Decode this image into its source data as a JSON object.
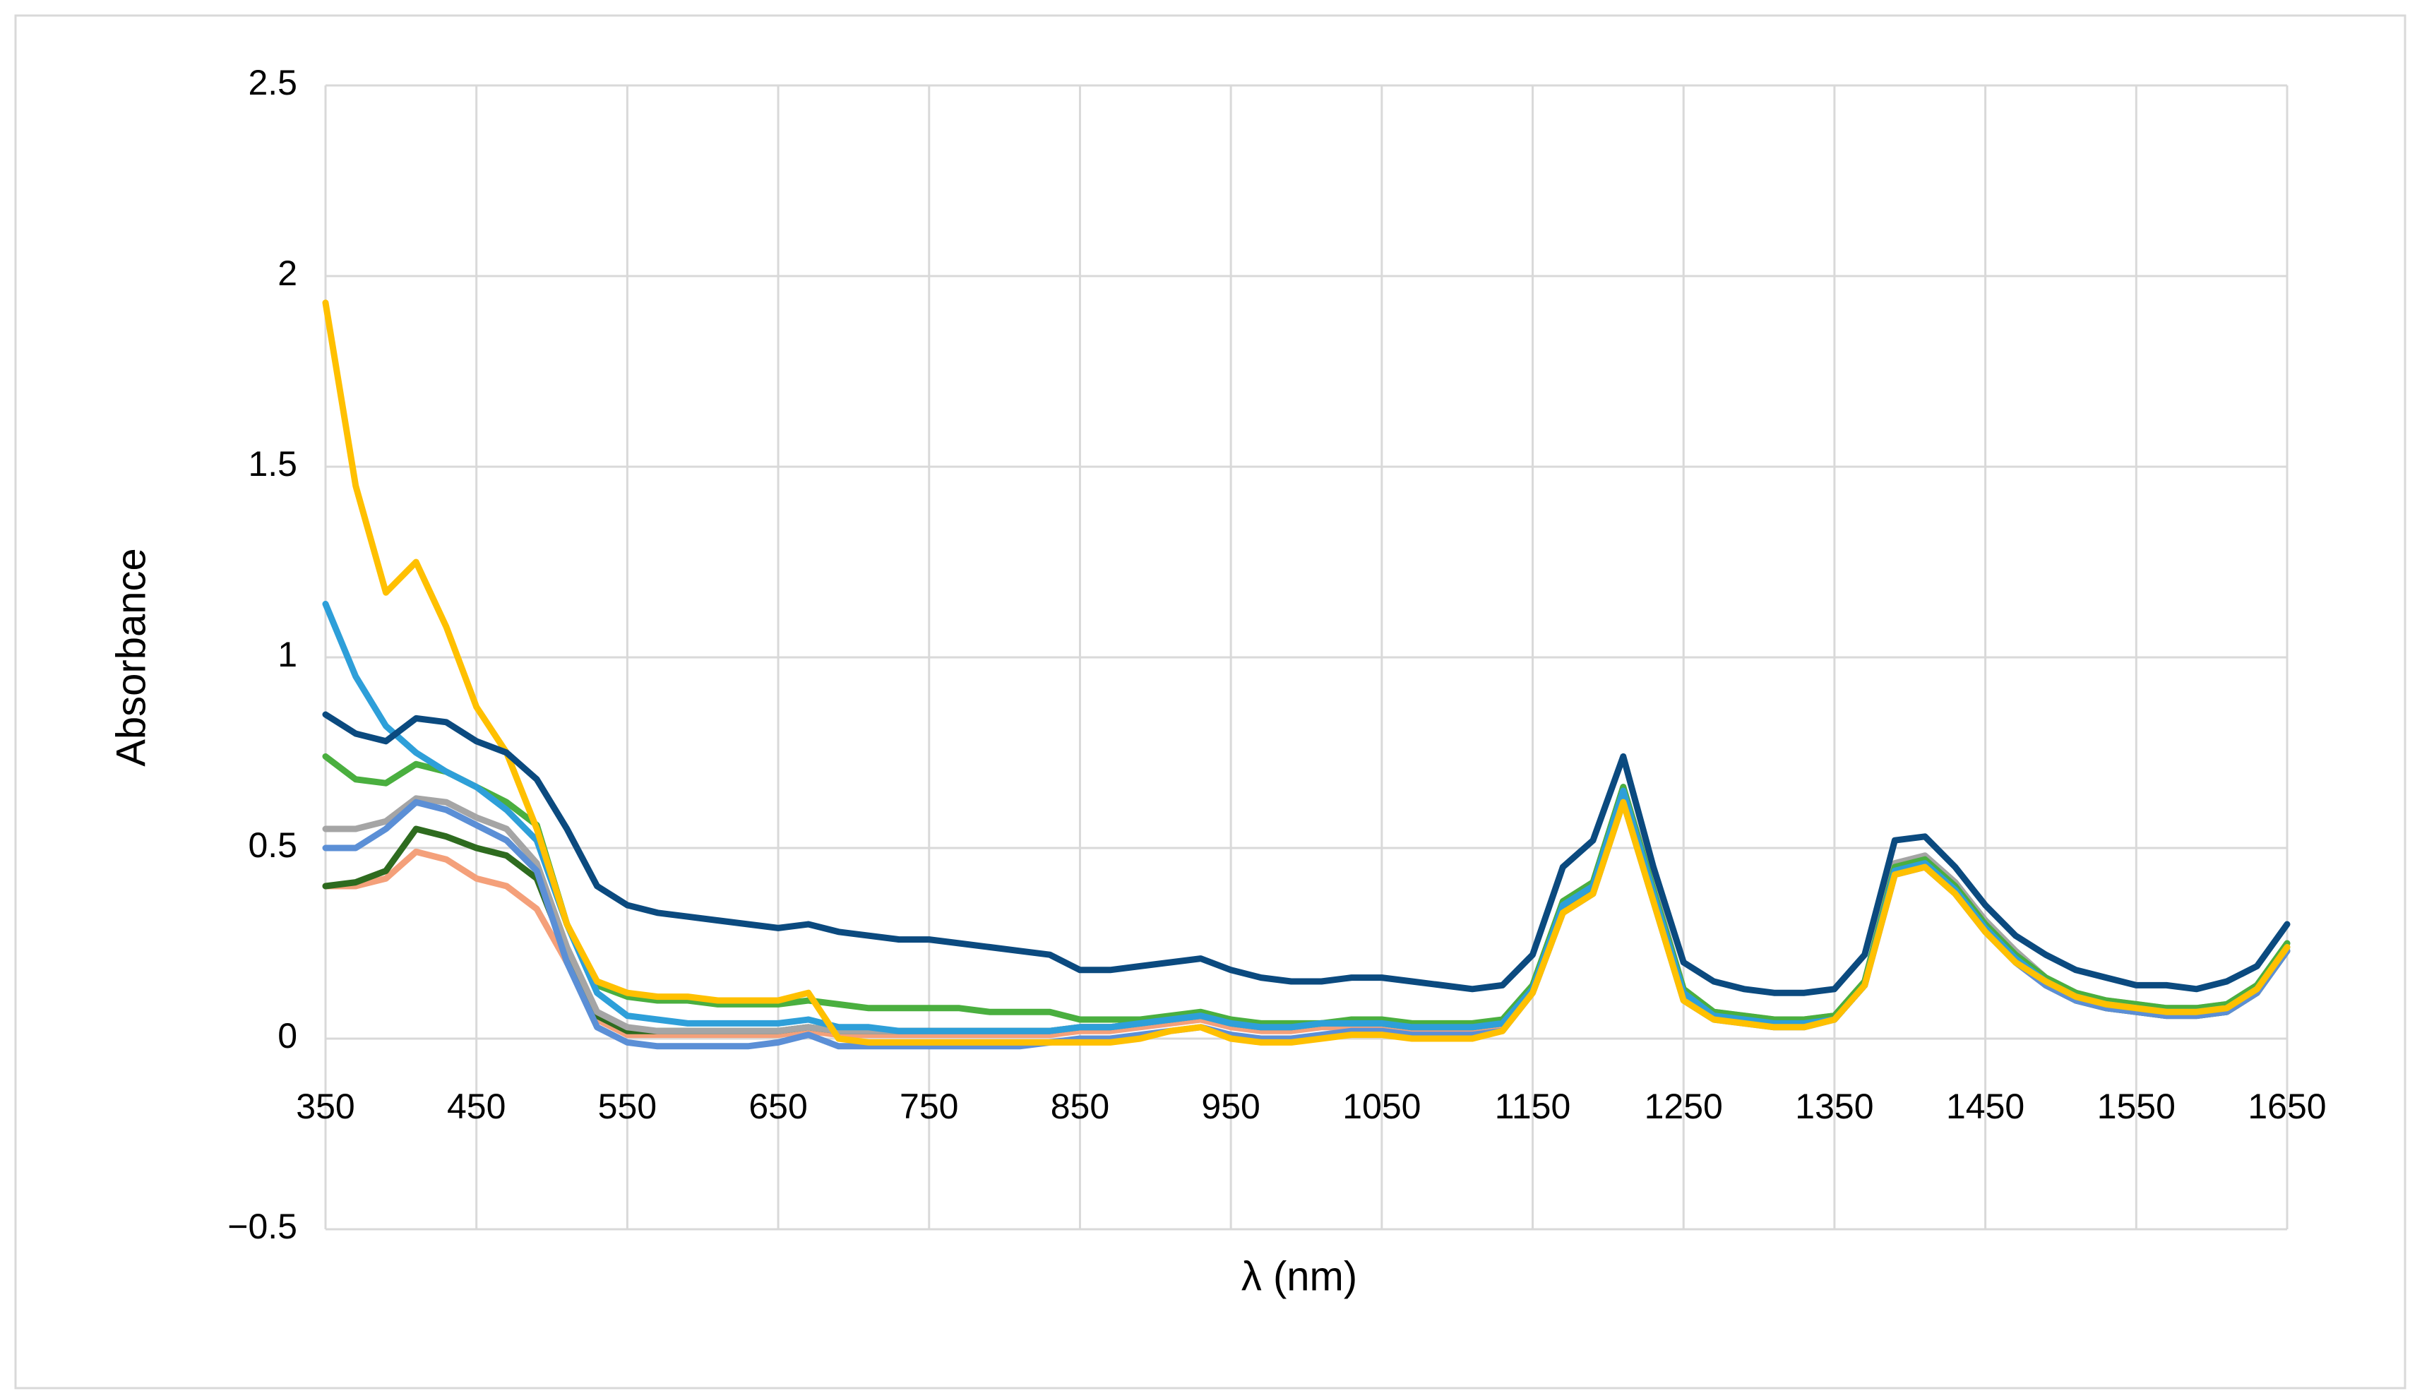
{
  "chart_data": {
    "type": "line",
    "x_label": "λ (nm)",
    "y_label": "Absorbance",
    "xlim": [
      350,
      1650
    ],
    "xticks": [
      350,
      450,
      550,
      650,
      750,
      850,
      950,
      1050,
      1150,
      1250,
      1350,
      1450,
      1550,
      1650
    ],
    "ylim": [
      -0.5,
      2.5
    ],
    "yticks": [
      {
        "value": -0.5,
        "label": "−0.5"
      },
      0,
      0.5,
      1,
      1.5,
      2,
      2.5
    ],
    "grid": true,
    "x": [
      350,
      370,
      390,
      410,
      430,
      450,
      470,
      490,
      510,
      530,
      550,
      570,
      590,
      610,
      630,
      650,
      670,
      690,
      710,
      730,
      750,
      770,
      790,
      810,
      830,
      850,
      870,
      890,
      910,
      930,
      950,
      970,
      990,
      1010,
      1030,
      1050,
      1070,
      1090,
      1110,
      1130,
      1150,
      1170,
      1190,
      1210,
      1230,
      1250,
      1270,
      1290,
      1310,
      1330,
      1350,
      1370,
      1390,
      1410,
      1430,
      1450,
      1470,
      1490,
      1510,
      1530,
      1550,
      1570,
      1590,
      1610,
      1630,
      1650
    ],
    "series": [
      {
        "color": "#f4a07a",
        "values": [
          0.4,
          0.4,
          0.42,
          0.49,
          0.47,
          0.42,
          0.4,
          0.34,
          0.2,
          0.05,
          0.01,
          0.01,
          0.01,
          0.01,
          0.01,
          0.01,
          0.02,
          0.01,
          0.01,
          0.01,
          0.01,
          0.01,
          0.01,
          0.01,
          0.01,
          0.02,
          0.02,
          0.03,
          0.04,
          0.05,
          0.03,
          0.02,
          0.02,
          0.03,
          0.03,
          0.03,
          0.02,
          0.02,
          0.02,
          0.03,
          0.12,
          0.33,
          0.38,
          0.63,
          0.37,
          0.11,
          0.06,
          0.05,
          0.04,
          0.04,
          0.05,
          0.14,
          0.43,
          0.45,
          0.38,
          0.28,
          0.2,
          0.14,
          0.1,
          0.08,
          0.07,
          0.06,
          0.06,
          0.07,
          0.12,
          0.23
        ]
      },
      {
        "color": "#2e6b1f",
        "values": [
          0.4,
          0.41,
          0.44,
          0.55,
          0.53,
          0.5,
          0.48,
          0.42,
          0.22,
          0.06,
          0.02,
          0.02,
          0.02,
          0.02,
          0.02,
          0.02,
          0.03,
          0.02,
          0.02,
          0.02,
          0.02,
          0.02,
          0.02,
          0.02,
          0.02,
          0.03,
          0.03,
          0.04,
          0.05,
          0.06,
          0.04,
          0.03,
          0.03,
          0.04,
          0.04,
          0.04,
          0.03,
          0.03,
          0.03,
          0.04,
          0.13,
          0.34,
          0.39,
          0.64,
          0.38,
          0.12,
          0.06,
          0.05,
          0.04,
          0.04,
          0.05,
          0.14,
          0.44,
          0.46,
          0.39,
          0.29,
          0.21,
          0.14,
          0.1,
          0.08,
          0.07,
          0.06,
          0.06,
          0.07,
          0.12,
          0.23
        ]
      },
      {
        "color": "#a5a5a5",
        "values": [
          0.55,
          0.55,
          0.57,
          0.63,
          0.62,
          0.58,
          0.55,
          0.46,
          0.24,
          0.07,
          0.03,
          0.02,
          0.02,
          0.02,
          0.02,
          0.02,
          0.03,
          0.02,
          0.02,
          0.02,
          0.02,
          0.02,
          0.02,
          0.02,
          0.02,
          0.03,
          0.03,
          0.04,
          0.05,
          0.06,
          0.04,
          0.03,
          0.03,
          0.04,
          0.04,
          0.04,
          0.03,
          0.03,
          0.03,
          0.04,
          0.14,
          0.36,
          0.41,
          0.66,
          0.4,
          0.13,
          0.07,
          0.06,
          0.05,
          0.05,
          0.06,
          0.15,
          0.46,
          0.48,
          0.41,
          0.31,
          0.23,
          0.16,
          0.12,
          0.1,
          0.09,
          0.08,
          0.08,
          0.09,
          0.14,
          0.25
        ]
      },
      {
        "color": "#5b8fd6",
        "values": [
          0.5,
          0.5,
          0.55,
          0.62,
          0.6,
          0.56,
          0.52,
          0.44,
          0.2,
          0.03,
          -0.01,
          -0.02,
          -0.02,
          -0.02,
          -0.02,
          -0.01,
          0.01,
          -0.02,
          -0.02,
          -0.02,
          -0.02,
          -0.02,
          -0.02,
          -0.02,
          -0.01,
          0.0,
          0.0,
          0.01,
          0.02,
          0.03,
          0.01,
          0.0,
          0.0,
          0.01,
          0.02,
          0.02,
          0.01,
          0.01,
          0.01,
          0.02,
          0.12,
          0.33,
          0.38,
          0.62,
          0.36,
          0.1,
          0.05,
          0.04,
          0.03,
          0.03,
          0.05,
          0.14,
          0.43,
          0.45,
          0.38,
          0.28,
          0.2,
          0.14,
          0.1,
          0.08,
          0.07,
          0.06,
          0.06,
          0.07,
          0.12,
          0.23
        ]
      },
      {
        "color": "#4aaf3f",
        "values": [
          0.74,
          0.68,
          0.67,
          0.72,
          0.7,
          0.66,
          0.62,
          0.56,
          0.3,
          0.14,
          0.11,
          0.1,
          0.1,
          0.09,
          0.09,
          0.09,
          0.1,
          0.09,
          0.08,
          0.08,
          0.08,
          0.08,
          0.07,
          0.07,
          0.07,
          0.05,
          0.05,
          0.05,
          0.06,
          0.07,
          0.05,
          0.04,
          0.04,
          0.04,
          0.05,
          0.05,
          0.04,
          0.04,
          0.04,
          0.05,
          0.14,
          0.36,
          0.41,
          0.66,
          0.39,
          0.13,
          0.07,
          0.06,
          0.05,
          0.05,
          0.06,
          0.15,
          0.45,
          0.47,
          0.4,
          0.3,
          0.22,
          0.16,
          0.12,
          0.1,
          0.09,
          0.08,
          0.08,
          0.09,
          0.14,
          0.25
        ]
      },
      {
        "color": "#2e9fd9",
        "values": [
          1.14,
          0.95,
          0.82,
          0.75,
          0.7,
          0.66,
          0.6,
          0.52,
          0.3,
          0.12,
          0.06,
          0.05,
          0.04,
          0.04,
          0.04,
          0.04,
          0.05,
          0.03,
          0.03,
          0.02,
          0.02,
          0.02,
          0.02,
          0.02,
          0.02,
          0.03,
          0.03,
          0.04,
          0.05,
          0.06,
          0.04,
          0.03,
          0.03,
          0.04,
          0.04,
          0.04,
          0.03,
          0.03,
          0.03,
          0.04,
          0.13,
          0.35,
          0.4,
          0.65,
          0.38,
          0.12,
          0.06,
          0.05,
          0.04,
          0.04,
          0.05,
          0.14,
          0.44,
          0.46,
          0.39,
          0.29,
          0.21,
          0.15,
          0.11,
          0.09,
          0.08,
          0.07,
          0.07,
          0.08,
          0.13,
          0.24
        ]
      },
      {
        "color": "#ffc000",
        "values": [
          1.93,
          1.45,
          1.17,
          1.25,
          1.08,
          0.87,
          0.75,
          0.55,
          0.3,
          0.15,
          0.12,
          0.11,
          0.11,
          0.1,
          0.1,
          0.1,
          0.12,
          0.0,
          -0.01,
          -0.01,
          -0.01,
          -0.01,
          -0.01,
          -0.01,
          -0.01,
          -0.01,
          -0.01,
          0.0,
          0.02,
          0.03,
          0.0,
          -0.01,
          -0.01,
          0.0,
          0.01,
          0.01,
          0.0,
          0.0,
          0.0,
          0.02,
          0.12,
          0.33,
          0.38,
          0.62,
          0.36,
          0.1,
          0.05,
          0.04,
          0.03,
          0.03,
          0.05,
          0.14,
          0.43,
          0.45,
          0.38,
          0.28,
          0.2,
          0.15,
          0.11,
          0.09,
          0.08,
          0.07,
          0.07,
          0.08,
          0.13,
          0.24
        ]
      },
      {
        "color": "#0b4a7f",
        "values": [
          0.85,
          0.8,
          0.78,
          0.84,
          0.83,
          0.78,
          0.75,
          0.68,
          0.55,
          0.4,
          0.35,
          0.33,
          0.32,
          0.31,
          0.3,
          0.29,
          0.3,
          0.28,
          0.27,
          0.26,
          0.26,
          0.25,
          0.24,
          0.23,
          0.22,
          0.18,
          0.18,
          0.19,
          0.2,
          0.21,
          0.18,
          0.16,
          0.15,
          0.15,
          0.16,
          0.16,
          0.15,
          0.14,
          0.13,
          0.14,
          0.22,
          0.45,
          0.52,
          0.74,
          0.45,
          0.2,
          0.15,
          0.13,
          0.12,
          0.12,
          0.13,
          0.22,
          0.52,
          0.53,
          0.45,
          0.35,
          0.27,
          0.22,
          0.18,
          0.16,
          0.14,
          0.14,
          0.13,
          0.15,
          0.19,
          0.3
        ]
      }
    ]
  }
}
